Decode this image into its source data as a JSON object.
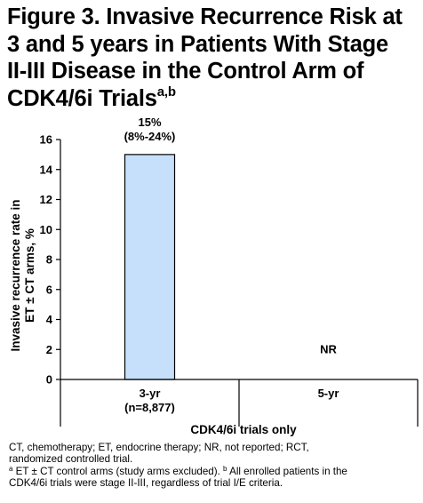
{
  "title": {
    "line1": "Figure 3. Invasive Recurrence Risk at",
    "line2": "3 and 5 years in Patients With Stage",
    "line3": "II-III Disease in the Control Arm of",
    "line4": "CDK4/6i Trials",
    "superscript": "a,b"
  },
  "chart_data": {
    "type": "bar",
    "categories": [
      "3-yr",
      "5-yr"
    ],
    "category_sublabels": [
      "(n=8,877)",
      ""
    ],
    "values": [
      15,
      null
    ],
    "value_labels": [
      "15%",
      "NR"
    ],
    "ci_labels": [
      "(8%-24%)",
      ""
    ],
    "ylabel_line1": "Invasive recurrence rate in",
    "ylabel_line2": "ET ± CT arms, %",
    "xlabel": "CDK4/6i trials only",
    "ylim": [
      0,
      16
    ],
    "yticks": [
      0,
      2,
      4,
      6,
      8,
      10,
      12,
      14,
      16
    ],
    "grid": false,
    "bar_color": "#c6e0fb",
    "bar_edge_color": "#000000"
  },
  "footnotes": {
    "line1": "CT, chemotherapy; ET, endocrine therapy; NR, not reported; RCT,",
    "line2": "randomized controlled trial.",
    "line3_sup_a": "a",
    "line3_text": " ET ± CT control arms (study arms excluded). ",
    "line3_sup_b": "b",
    "line3_text2": " All enrolled patients in the",
    "line4": "CDK4/6i trials were stage II-III, regardless of trial I/E criteria."
  }
}
